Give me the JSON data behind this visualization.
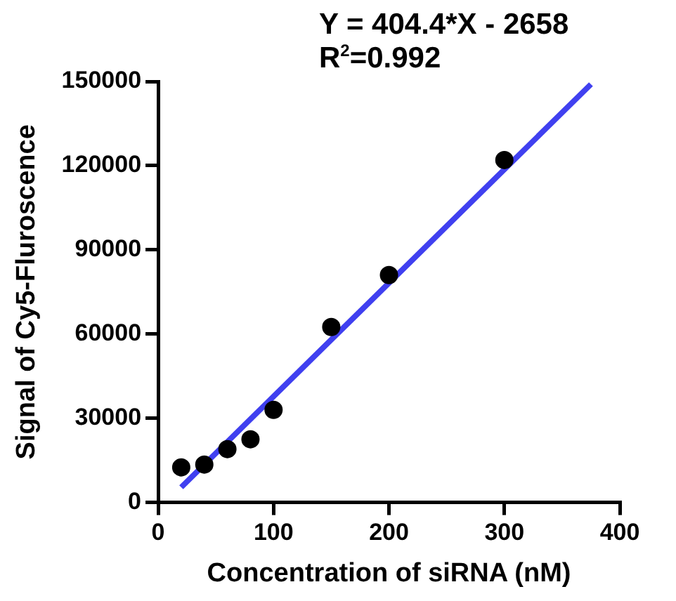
{
  "chart_data": {
    "type": "scatter",
    "xlabel": "Concentration of siRNA (nM)",
    "ylabel": "Signal of Cy5-Fluroscence",
    "annotations": [
      "Y = 404.4*X - 2658",
      "R$^{2}$=0.992"
    ],
    "x": [
      20,
      40,
      60,
      80,
      100,
      150,
      200,
      300
    ],
    "series": [
      {
        "color": "#000000",
        "values": [
          12500,
          13500,
          19000,
          22500,
          33000,
          62500,
          81000,
          122000
        ],
        "marker": "circle"
      },
      {
        "type": "line",
        "color": "#4040f0",
        "x": [
          20,
          375
        ],
        "values": [
          5400,
          149000
        ],
        "marker": "none",
        "line_style": "solid"
      }
    ],
    "xlim": [
      0,
      400
    ],
    "xticks": [
      0,
      100,
      200,
      300,
      400
    ],
    "ylim": [
      0,
      150000
    ],
    "yticks": [
      0,
      30000,
      60000,
      90000,
      120000,
      150000
    ],
    "grid": false,
    "legend": false
  }
}
